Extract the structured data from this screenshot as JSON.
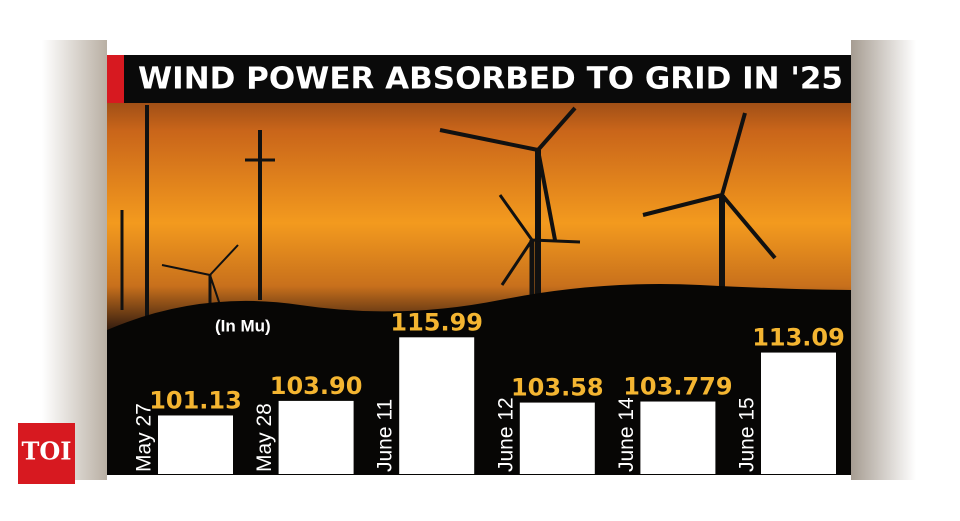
{
  "chart_data": {
    "type": "bar",
    "title": "WIND POWER ABSORBED TO GRID IN '25",
    "unit_note": "(In Mu)",
    "categories": [
      "May 27",
      "May 28",
      "June 11",
      "June 12",
      "June 14",
      "June 15"
    ],
    "values": [
      101.13,
      103.9,
      115.99,
      103.58,
      103.779,
      113.09
    ],
    "value_labels": [
      "101.13",
      "103.90",
      "115.99",
      "103.58",
      "103.779",
      "113.09"
    ],
    "color": "#ffffff",
    "ylim": [
      90,
      117
    ]
  },
  "logo": "TOI"
}
